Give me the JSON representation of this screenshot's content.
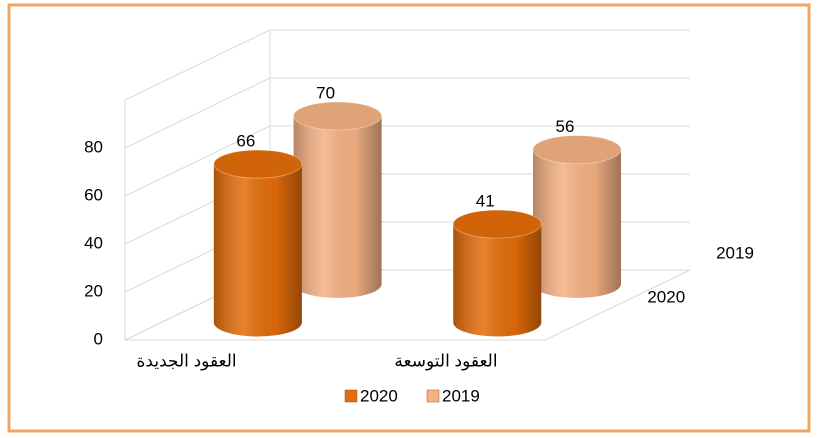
{
  "chart_data": {
    "type": "bar3d",
    "categories": [
      "العقود الجديدة",
      "العقود التوسعة"
    ],
    "series": [
      {
        "name": "2020",
        "color": "#e36c0a",
        "values": [
          66,
          41
        ]
      },
      {
        "name": "2019",
        "color": "#f4b183",
        "values": [
          70,
          56
        ]
      }
    ],
    "ylim": [
      0,
      100
    ],
    "yticks": [
      0,
      20,
      40,
      60,
      80
    ],
    "grid": true,
    "legend": "bottom"
  }
}
